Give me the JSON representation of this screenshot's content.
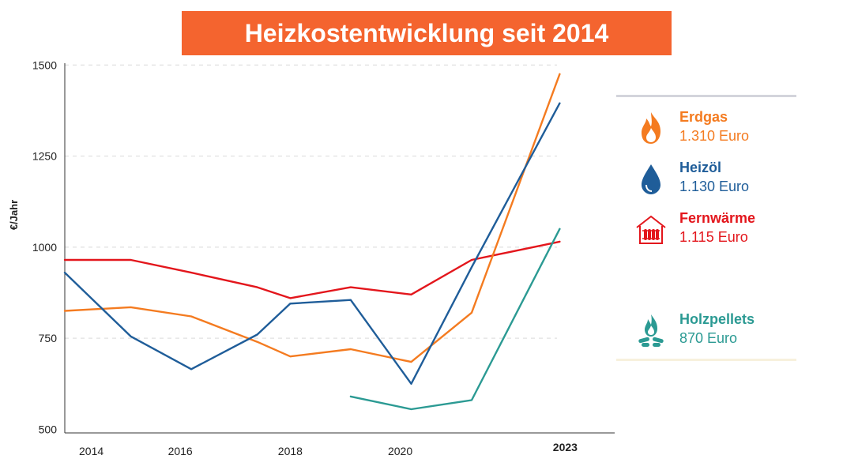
{
  "title": "Heizkostentwicklung seit 2014",
  "colors": {
    "banner": "#f4642f",
    "erdgas": "#f47b20",
    "heizoel": "#1f5d99",
    "fernwaerme": "#e3161c",
    "holzpellets": "#2b9a93"
  },
  "legend": [
    {
      "name": "Erdgas",
      "value": "1.310 Euro",
      "icon": "flame-icon",
      "color": "#f47b20"
    },
    {
      "name": "Heizöl",
      "value": "1.130 Euro",
      "icon": "oil-drop-icon",
      "color": "#1f5d99"
    },
    {
      "name": "Fernwärme",
      "value": "1.115 Euro",
      "icon": "radiator-house-icon",
      "color": "#e3161c"
    },
    {
      "name": "Holzpellets",
      "value": "870 Euro",
      "icon": "wood-pellets-fire-icon",
      "color": "#2b9a93"
    }
  ],
  "chart_data": {
    "type": "line",
    "title": "Heizkostentwicklung seit 2014",
    "xlabel": "",
    "ylabel": "€/Jahr",
    "x_ticks": [
      {
        "label": "2014",
        "value": 2014
      },
      {
        "label": "2016",
        "value": 2016
      },
      {
        "label": "2018",
        "value": 2018
      },
      {
        "label": "2020",
        "value": 2020
      },
      {
        "label": "2023",
        "value": 2023,
        "bold": true
      }
    ],
    "y_ticks": [
      500,
      750,
      1000,
      1250,
      1500
    ],
    "xlim": [
      2013.9,
      2023.9
    ],
    "ylim": [
      490,
      1505
    ],
    "grid": true,
    "series": [
      {
        "name": "Fernwärme",
        "color": "#e3161c",
        "x": [
          2013.9,
          2015.1,
          2016.2,
          2017.4,
          2018.0,
          2019.1,
          2020.2,
          2021.3,
          2022.9
        ],
        "y": [
          965,
          965,
          930,
          890,
          860,
          890,
          870,
          965,
          1015
        ]
      },
      {
        "name": "Erdgas",
        "color": "#f47b20",
        "x": [
          2013.9,
          2015.1,
          2016.2,
          2017.4,
          2018.0,
          2019.1,
          2020.2,
          2021.3,
          2022.9
        ],
        "y": [
          825,
          835,
          810,
          740,
          700,
          720,
          685,
          820,
          1475
        ]
      },
      {
        "name": "Heizöl",
        "color": "#1f5d99",
        "x": [
          2013.9,
          2015.1,
          2016.2,
          2017.4,
          2018.0,
          2019.1,
          2020.2,
          2021.3,
          2022.9
        ],
        "y": [
          930,
          755,
          665,
          760,
          845,
          855,
          625,
          945,
          1395
        ]
      },
      {
        "name": "Holzpellets",
        "color": "#2b9a93",
        "x": [
          2019.1,
          2020.2,
          2021.3,
          2022.9
        ],
        "y": [
          590,
          555,
          580,
          1050
        ]
      }
    ]
  }
}
